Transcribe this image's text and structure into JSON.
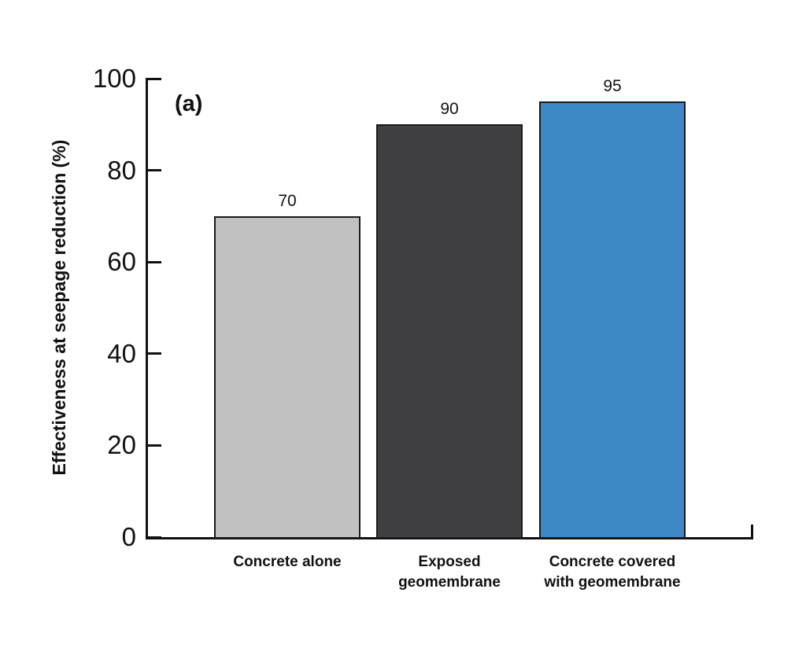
{
  "figure": {
    "panel_label": "(a)",
    "background_color": "#ffffff"
  },
  "chart_data": {
    "type": "bar",
    "title": "",
    "xlabel": "",
    "ylabel": "Effectiveness at seepage reduction (%)",
    "ylim": [
      0,
      100
    ],
    "yticks": [
      0,
      20,
      40,
      60,
      80,
      100
    ],
    "grid": false,
    "legend_position": "none",
    "categories": [
      "Concrete alone",
      "Exposed geomembrane",
      "Concrete covered with geomembrane"
    ],
    "values": [
      70,
      90,
      95
    ],
    "bars": [
      {
        "category": "Concrete alone",
        "category_lines": [
          "Concrete alone"
        ],
        "value": 70,
        "value_label": "70",
        "color": "#c1c1c1"
      },
      {
        "category": "Exposed geomembrane",
        "category_lines": [
          "Exposed",
          "geomembrane"
        ],
        "value": 90,
        "value_label": "90",
        "color": "#404043"
      },
      {
        "category": "Concrete covered with geomembrane",
        "category_lines": [
          "Concrete covered",
          "with geomembrane"
        ],
        "value": 95,
        "value_label": "95",
        "color": "#3e88c5"
      }
    ],
    "bar_border_color": "#1a1a1a",
    "axis_color": "#111111",
    "text_color": "#111111"
  }
}
